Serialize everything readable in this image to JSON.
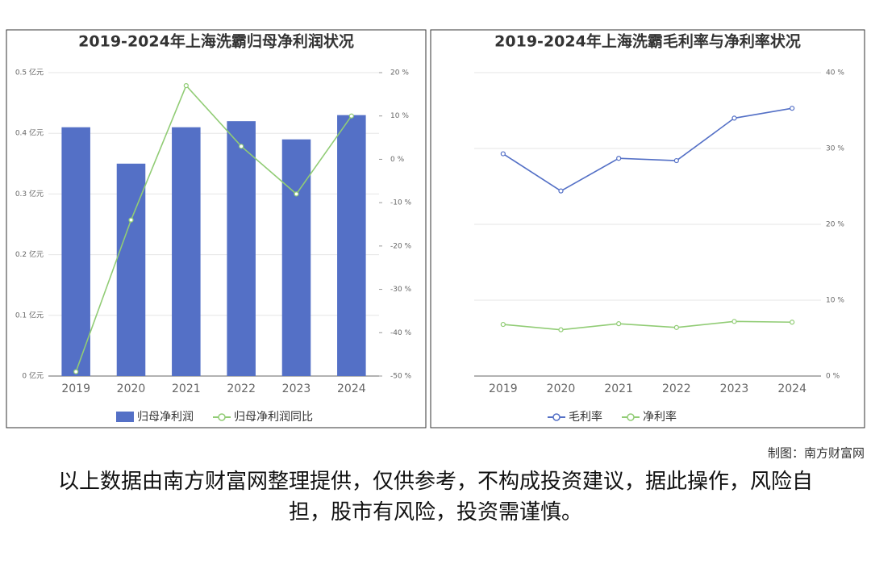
{
  "chart_data": [
    {
      "type": "bar",
      "title": "2019-2024年上海洗霸归母净利润状况",
      "categories": [
        "2019",
        "2020",
        "2021",
        "2022",
        "2023",
        "2024"
      ],
      "series": [
        {
          "name": "归母净利润",
          "type": "bar",
          "color": "#5470c6",
          "values": [
            0.41,
            0.35,
            0.41,
            0.42,
            0.39,
            0.43
          ]
        },
        {
          "name": "归母净利润同比",
          "type": "line",
          "axis": "y2",
          "color": "#91cc75",
          "values": [
            -49,
            -14,
            17,
            3,
            -8,
            10
          ]
        }
      ],
      "ylim": [
        0,
        0.5
      ],
      "yticks": [
        {
          "value": 0,
          "label": "0 亿元"
        },
        {
          "value": 0.1,
          "label": "0.1 亿元"
        },
        {
          "value": 0.2,
          "label": "0.2 亿元"
        },
        {
          "value": 0.3,
          "label": "0.3 亿元"
        },
        {
          "value": 0.4,
          "label": "0.4 亿元"
        },
        {
          "value": 0.5,
          "label": "0.5 亿元"
        }
      ],
      "y2lim": [
        -50,
        20
      ],
      "y2ticks": [
        {
          "value": -50,
          "label": "-50 %"
        },
        {
          "value": -40,
          "label": "-40 %"
        },
        {
          "value": -30,
          "label": "-30 %"
        },
        {
          "value": -20,
          "label": "-20 %"
        },
        {
          "value": -10,
          "label": "-10 %"
        },
        {
          "value": 0,
          "label": "0 %"
        },
        {
          "value": 10,
          "label": "10 %"
        },
        {
          "value": 20,
          "label": "20 %"
        }
      ],
      "grid": true,
      "legend": "bottom"
    },
    {
      "type": "line",
      "title": "2019-2024年上海洗霸毛利率与净利率状况",
      "categories": [
        "2019",
        "2020",
        "2021",
        "2022",
        "2023",
        "2024"
      ],
      "series": [
        {
          "name": "毛利率",
          "color": "#5470c6",
          "values": [
            29.3,
            24.4,
            28.7,
            28.4,
            34.0,
            35.3
          ]
        },
        {
          "name": "净利率",
          "color": "#91cc75",
          "values": [
            6.8,
            6.1,
            6.9,
            6.4,
            7.2,
            7.1
          ]
        }
      ],
      "ylim": [
        0,
        40
      ],
      "y_axis_side": "right",
      "yticks": [
        {
          "value": 0,
          "label": "0 %"
        },
        {
          "value": 10,
          "label": "10 %"
        },
        {
          "value": 20,
          "label": "20 %"
        },
        {
          "value": 30,
          "label": "30 %"
        },
        {
          "value": 40,
          "label": "40 %"
        }
      ],
      "grid": true,
      "legend": "bottom"
    }
  ],
  "credit": "制图：南方财富网",
  "disclaimer": "以上数据由南方财富网整理提供，仅供参考，不构成投资建议，据此操作，风险自担，股市有风险，投资需谨慎。"
}
